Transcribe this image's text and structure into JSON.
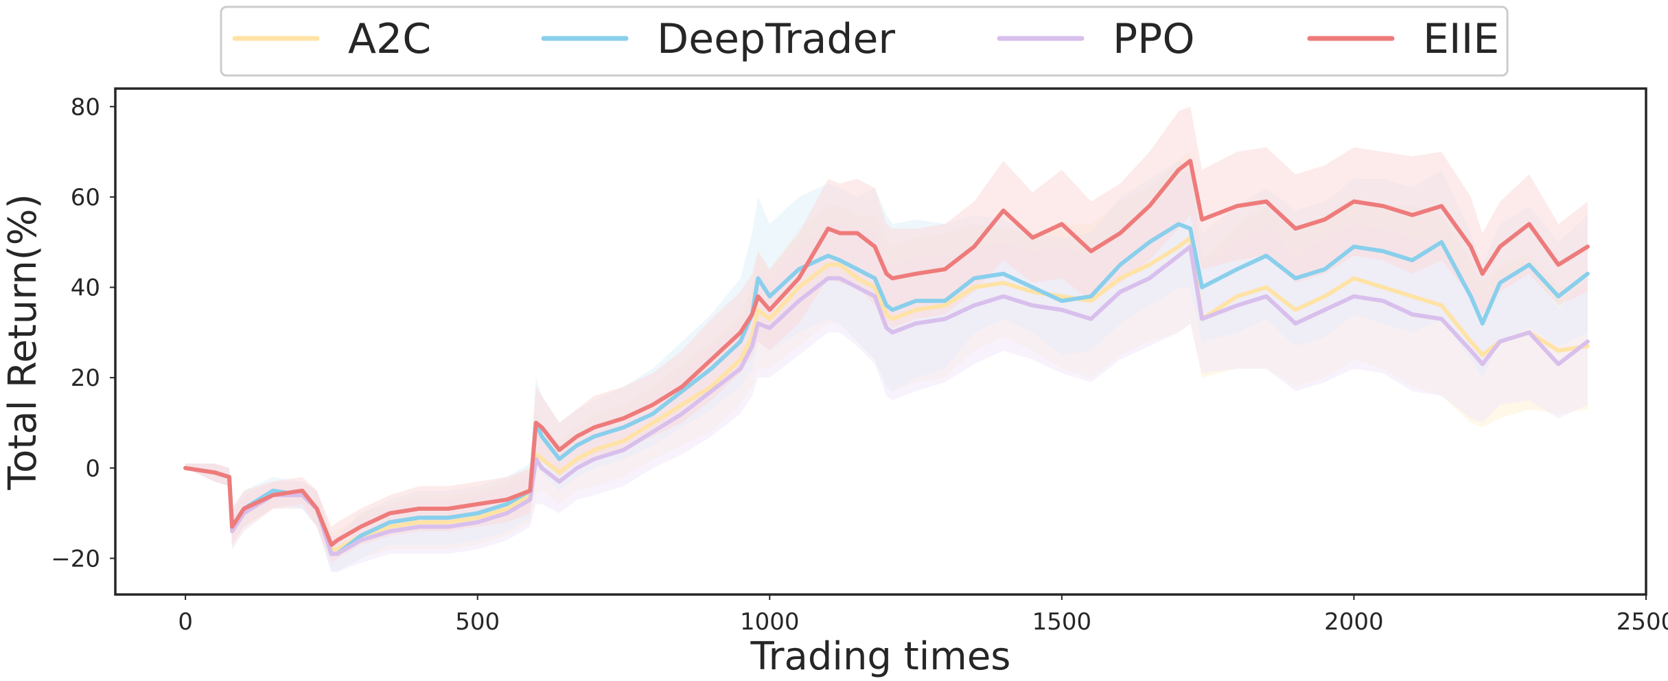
{
  "chart_data": {
    "type": "line",
    "title": "",
    "xlabel": "Trading times",
    "ylabel": "Total Return(%)",
    "xlim": [
      -120,
      2500
    ],
    "ylim": [
      -28,
      84
    ],
    "xticks": [
      0,
      500,
      1000,
      1500,
      2000,
      2500
    ],
    "yticks": [
      -20,
      0,
      20,
      40,
      60,
      80
    ],
    "xtick_labels": [
      "0",
      "500",
      "1000",
      "1500",
      "2000",
      "2500"
    ],
    "ytick_labels": [
      "−20",
      "0",
      "20",
      "40",
      "60",
      "80"
    ],
    "grid": false,
    "legend_position": "top-center, above plot",
    "x": [
      0,
      50,
      75,
      80,
      100,
      150,
      200,
      225,
      250,
      260,
      300,
      350,
      400,
      450,
      500,
      550,
      590,
      600,
      610,
      640,
      670,
      700,
      750,
      800,
      850,
      900,
      950,
      970,
      980,
      1000,
      1050,
      1100,
      1120,
      1150,
      1180,
      1200,
      1210,
      1250,
      1300,
      1350,
      1400,
      1450,
      1500,
      1550,
      1600,
      1650,
      1700,
      1720,
      1740,
      1800,
      1850,
      1900,
      1950,
      2000,
      2050,
      2100,
      2150,
      2200,
      2220,
      2250,
      2300,
      2350,
      2400
    ],
    "series": [
      {
        "name": "A2C",
        "color": "#ffe3a6",
        "band_color": "#fff2d6",
        "values": [
          0,
          -1,
          -2,
          -14,
          -10,
          -6,
          -6,
          -9,
          -18,
          -18,
          -15,
          -13,
          -12,
          -12,
          -11,
          -9,
          -6,
          3,
          2,
          -1,
          2,
          4,
          6,
          10,
          14,
          18,
          24,
          29,
          35,
          33,
          40,
          45,
          45,
          42,
          40,
          34,
          33,
          35,
          36,
          40,
          41,
          39,
          38,
          37,
          42,
          45,
          49,
          51,
          33,
          38,
          40,
          35,
          38,
          42,
          40,
          38,
          36,
          28,
          25,
          28,
          30,
          26,
          27
        ],
        "band_lower": [
          0,
          -3,
          -4,
          -18,
          -14,
          -9,
          -9,
          -13,
          -22,
          -22,
          -20,
          -18,
          -18,
          -18,
          -17,
          -15,
          -12,
          -6,
          -5,
          -8,
          -5,
          -4,
          -2,
          2,
          5,
          8,
          14,
          18,
          22,
          22,
          27,
          32,
          32,
          28,
          24,
          18,
          17,
          19,
          20,
          26,
          29,
          26,
          22,
          20,
          25,
          28,
          30,
          32,
          20,
          22,
          22,
          18,
          20,
          24,
          22,
          18,
          16,
          10,
          9,
          11,
          13,
          12,
          13
        ],
        "band_upper": [
          1,
          1,
          0,
          -10,
          -6,
          -3,
          -3,
          -5,
          -14,
          -14,
          -10,
          -8,
          -6,
          -6,
          -5,
          -3,
          0,
          12,
          9,
          6,
          9,
          12,
          14,
          18,
          23,
          28,
          34,
          40,
          48,
          44,
          53,
          58,
          58,
          56,
          56,
          50,
          49,
          51,
          52,
          54,
          53,
          52,
          54,
          54,
          59,
          62,
          68,
          70,
          46,
          54,
          58,
          52,
          56,
          60,
          58,
          58,
          56,
          46,
          41,
          45,
          47,
          40,
          41
        ]
      },
      {
        "name": "DeepTrader",
        "color": "#89cfec",
        "band_color": "#dff1fa",
        "values": [
          0,
          -1,
          -2,
          -13,
          -9,
          -5,
          -6,
          -9,
          -19,
          -19,
          -15,
          -12,
          -11,
          -11,
          -10,
          -8,
          -5,
          10,
          7,
          2,
          5,
          7,
          9,
          12,
          17,
          22,
          28,
          34,
          42,
          38,
          44,
          47,
          46,
          44,
          42,
          36,
          35,
          37,
          37,
          42,
          43,
          40,
          37,
          38,
          45,
          50,
          54,
          53,
          40,
          44,
          47,
          42,
          44,
          49,
          48,
          46,
          50,
          38,
          32,
          41,
          45,
          38,
          43
        ],
        "band_lower": [
          0,
          -3,
          -4,
          -17,
          -13,
          -8,
          -9,
          -13,
          -23,
          -23,
          -20,
          -17,
          -17,
          -17,
          -16,
          -14,
          -11,
          0,
          -1,
          -5,
          -2,
          0,
          2,
          5,
          9,
          13,
          18,
          22,
          28,
          26,
          30,
          33,
          32,
          28,
          24,
          18,
          17,
          20,
          22,
          30,
          33,
          30,
          25,
          26,
          32,
          36,
          40,
          40,
          28,
          30,
          33,
          27,
          29,
          34,
          32,
          30,
          33,
          24,
          20,
          28,
          31,
          27,
          30
        ],
        "band_upper": [
          1,
          1,
          0,
          -9,
          -5,
          -2,
          -3,
          -5,
          -15,
          -15,
          -10,
          -7,
          -5,
          -5,
          -4,
          -2,
          1,
          20,
          16,
          10,
          13,
          15,
          18,
          22,
          28,
          34,
          42,
          52,
          60,
          54,
          60,
          63,
          62,
          60,
          62,
          56,
          54,
          55,
          54,
          56,
          55,
          52,
          51,
          52,
          60,
          64,
          68,
          66,
          52,
          58,
          62,
          57,
          59,
          64,
          64,
          62,
          66,
          52,
          45,
          54,
          58,
          50,
          56
        ]
      },
      {
        "name": "PPO",
        "color": "#d8bfec",
        "band_color": "#f1e8f9",
        "values": [
          0,
          -1,
          -2,
          -14,
          -10,
          -6,
          -6,
          -9,
          -19,
          -19,
          -16,
          -14,
          -13,
          -13,
          -12,
          -10,
          -7,
          2,
          0,
          -3,
          0,
          2,
          4,
          8,
          12,
          17,
          22,
          27,
          32,
          31,
          37,
          42,
          42,
          40,
          38,
          31,
          30,
          32,
          33,
          36,
          38,
          36,
          35,
          33,
          39,
          42,
          47,
          49,
          33,
          36,
          38,
          32,
          35,
          38,
          37,
          34,
          33,
          26,
          23,
          28,
          30,
          23,
          28
        ],
        "band_lower": [
          0,
          -3,
          -4,
          -18,
          -14,
          -9,
          -9,
          -13,
          -23,
          -23,
          -21,
          -19,
          -19,
          -19,
          -18,
          -16,
          -13,
          -8,
          -8,
          -10,
          -7,
          -6,
          -4,
          0,
          3,
          7,
          12,
          16,
          20,
          20,
          25,
          30,
          30,
          27,
          23,
          16,
          15,
          17,
          19,
          23,
          26,
          24,
          21,
          19,
          24,
          27,
          30,
          32,
          21,
          22,
          22,
          17,
          19,
          22,
          21,
          17,
          16,
          11,
          10,
          14,
          15,
          11,
          14
        ],
        "band_upper": [
          1,
          1,
          0,
          -10,
          -6,
          -3,
          -3,
          -5,
          -15,
          -15,
          -11,
          -9,
          -7,
          -7,
          -6,
          -4,
          -1,
          12,
          8,
          4,
          7,
          10,
          12,
          16,
          21,
          27,
          32,
          38,
          44,
          42,
          49,
          54,
          54,
          53,
          53,
          46,
          45,
          47,
          47,
          49,
          50,
          48,
          49,
          47,
          54,
          57,
          64,
          66,
          45,
          50,
          54,
          47,
          51,
          54,
          53,
          51,
          50,
          41,
          36,
          42,
          45,
          35,
          42
        ]
      },
      {
        "name": "EIIE",
        "color": "#ee7b7b",
        "band_color": "#fbdada",
        "values": [
          0,
          -1,
          -2,
          -13,
          -9,
          -6,
          -5,
          -9,
          -17,
          -16,
          -13,
          -10,
          -9,
          -9,
          -8,
          -7,
          -5,
          10,
          9,
          4,
          7,
          9,
          11,
          14,
          18,
          24,
          30,
          34,
          38,
          35,
          42,
          53,
          52,
          52,
          49,
          43,
          42,
          43,
          44,
          49,
          57,
          51,
          54,
          48,
          52,
          58,
          66,
          68,
          55,
          58,
          59,
          53,
          55,
          59,
          58,
          56,
          58,
          49,
          43,
          49,
          54,
          45,
          49
        ],
        "band_lower": [
          0,
          -3,
          -4,
          -17,
          -13,
          -9,
          -8,
          -13,
          -21,
          -20,
          -17,
          -15,
          -14,
          -14,
          -13,
          -12,
          -10,
          2,
          2,
          -2,
          1,
          2,
          4,
          7,
          10,
          15,
          21,
          25,
          28,
          26,
          32,
          42,
          41,
          40,
          36,
          32,
          31,
          33,
          34,
          39,
          46,
          41,
          42,
          37,
          41,
          46,
          53,
          56,
          44,
          46,
          47,
          41,
          43,
          47,
          46,
          43,
          46,
          38,
          34,
          39,
          43,
          36,
          39
        ],
        "band_upper": [
          1,
          1,
          0,
          -9,
          -5,
          -3,
          -2,
          -5,
          -13,
          -12,
          -9,
          -6,
          -4,
          -4,
          -3,
          -2,
          0,
          18,
          16,
          10,
          13,
          16,
          18,
          21,
          26,
          33,
          39,
          43,
          48,
          44,
          52,
          64,
          63,
          64,
          62,
          54,
          53,
          53,
          54,
          59,
          68,
          61,
          66,
          59,
          63,
          70,
          79,
          80,
          66,
          70,
          71,
          65,
          67,
          71,
          70,
          69,
          70,
          60,
          52,
          59,
          65,
          54,
          59
        ]
      }
    ]
  }
}
